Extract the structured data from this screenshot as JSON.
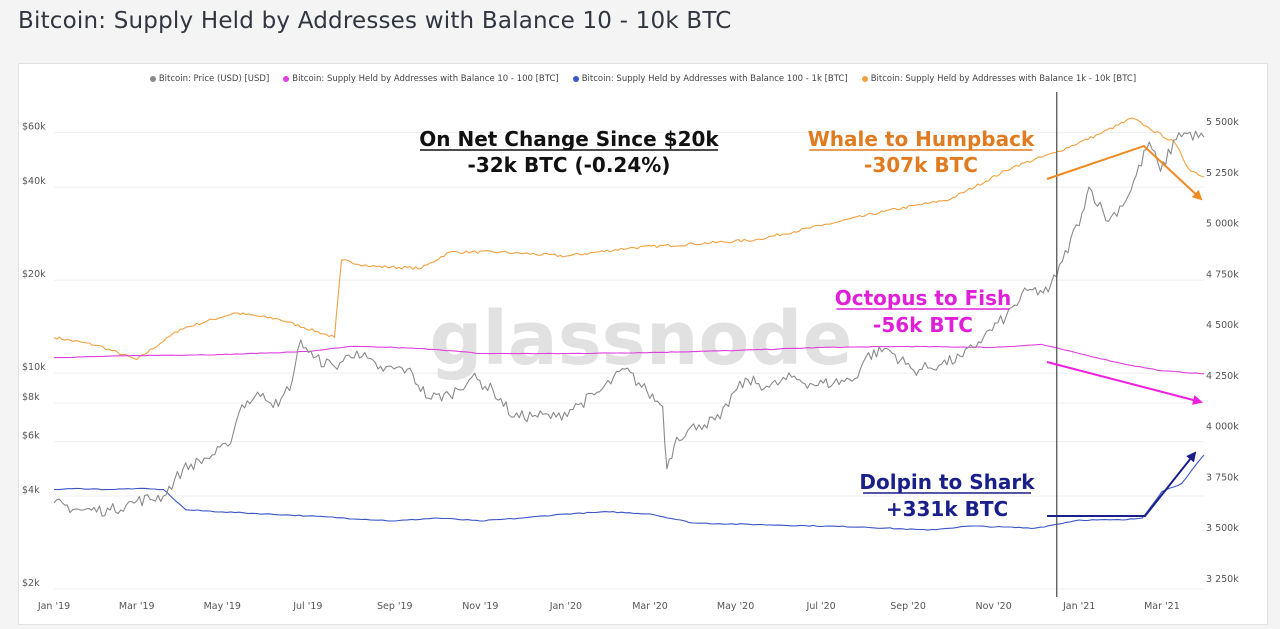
{
  "page": {
    "title": "Bitcoin: Supply Held by Addresses with Balance 10 - 10k BTC"
  },
  "chart_data": {
    "type": "line",
    "title": "Bitcoin: Supply Held by Addresses with Balance 10 - 10k BTC",
    "watermark": "glassnode",
    "legend_position": "top",
    "x_ticks": [
      "Jan '19",
      "Mar '19",
      "May '19",
      "Jul '19",
      "Sep '19",
      "Nov '19",
      "Jan '20",
      "Mar '20",
      "May '20",
      "Jul '20",
      "Sep '20",
      "Nov '20",
      "Jan '21",
      "Mar '21"
    ],
    "x_tick_dates": [
      "2019-01-01",
      "2019-03-01",
      "2019-05-01",
      "2019-07-01",
      "2019-09-01",
      "2019-11-01",
      "2020-01-01",
      "2020-03-01",
      "2020-05-01",
      "2020-07-01",
      "2020-09-01",
      "2020-11-01",
      "2021-01-01",
      "2021-03-01"
    ],
    "x_range": [
      "2019-01-01",
      "2021-03-31"
    ],
    "y_left": {
      "scale": "log",
      "unit": "USD",
      "range": [
        2000,
        70000
      ],
      "ticks": [
        2000,
        4000,
        6000,
        8000,
        10000,
        20000,
        40000,
        60000
      ],
      "tick_labels": [
        "$2k",
        "$4k",
        "$6k",
        "$8k",
        "$10k",
        "$20k",
        "$40k",
        "$60k"
      ]
    },
    "y_right": {
      "scale": "linear",
      "unit": "BTC",
      "range": [
        3200000,
        5550000
      ],
      "ticks": [
        3250000,
        3500000,
        3750000,
        4000000,
        4250000,
        4500000,
        4750000,
        5000000,
        5250000,
        5500000
      ],
      "tick_labels": [
        "3 250k",
        "3 500k",
        "3 750k",
        "4 000k",
        "4 250k",
        "4 500k",
        "4 750k",
        "5 000k",
        "5 250k",
        "5 500k"
      ]
    },
    "grid": true,
    "marker_date": "2020-12-16",
    "series": [
      {
        "name": "Bitcoin: Price (USD) [USD]",
        "color": "#8a8a8a",
        "axis": "left",
        "points": [
          [
            "2019-01-01",
            3800
          ],
          [
            "2019-01-20",
            3600
          ],
          [
            "2019-02-10",
            3600
          ],
          [
            "2019-03-01",
            3850
          ],
          [
            "2019-03-20",
            4000
          ],
          [
            "2019-04-03",
            4900
          ],
          [
            "2019-04-20",
            5300
          ],
          [
            "2019-05-05",
            5800
          ],
          [
            "2019-05-15",
            7900
          ],
          [
            "2019-05-30",
            8600
          ],
          [
            "2019-06-10",
            7800
          ],
          [
            "2019-06-20",
            9500
          ],
          [
            "2019-06-26",
            12800
          ],
          [
            "2019-07-05",
            11200
          ],
          [
            "2019-07-20",
            10500
          ],
          [
            "2019-08-05",
            11800
          ],
          [
            "2019-08-20",
            10300
          ],
          [
            "2019-09-10",
            10300
          ],
          [
            "2019-09-25",
            8300
          ],
          [
            "2019-10-10",
            8500
          ],
          [
            "2019-10-26",
            9700
          ],
          [
            "2019-11-10",
            8800
          ],
          [
            "2019-11-25",
            7200
          ],
          [
            "2019-12-10",
            7300
          ],
          [
            "2019-12-25",
            7200
          ],
          [
            "2020-01-10",
            7900
          ],
          [
            "2020-01-25",
            8700
          ],
          [
            "2020-02-12",
            10300
          ],
          [
            "2020-02-28",
            8700
          ],
          [
            "2020-03-10",
            7800
          ],
          [
            "2020-03-13",
            4900
          ],
          [
            "2020-03-20",
            6200
          ],
          [
            "2020-04-05",
            6800
          ],
          [
            "2020-04-20",
            7100
          ],
          [
            "2020-04-30",
            8700
          ],
          [
            "2020-05-10",
            9500
          ],
          [
            "2020-05-25",
            9000
          ],
          [
            "2020-06-10",
            9700
          ],
          [
            "2020-06-25",
            9200
          ],
          [
            "2020-07-10",
            9300
          ],
          [
            "2020-07-25",
            9600
          ],
          [
            "2020-08-02",
            11300
          ],
          [
            "2020-08-17",
            12000
          ],
          [
            "2020-09-05",
            10200
          ],
          [
            "2020-09-25",
            10700
          ],
          [
            "2020-10-10",
            11300
          ],
          [
            "2020-10-25",
            13100
          ],
          [
            "2020-11-10",
            15300
          ],
          [
            "2020-11-25",
            18500
          ],
          [
            "2020-12-10",
            18300
          ],
          [
            "2020-12-20",
            23000
          ],
          [
            "2021-01-03",
            33000
          ],
          [
            "2021-01-08",
            40000
          ],
          [
            "2021-01-22",
            31000
          ],
          [
            "2021-02-05",
            37500
          ],
          [
            "2021-02-20",
            56000
          ],
          [
            "2021-02-28",
            45000
          ],
          [
            "2021-03-13",
            60000
          ],
          [
            "2021-03-31",
            58000
          ]
        ]
      },
      {
        "name": "Bitcoin: Supply Held by Addresses with Balance 10 - 100 [BTC]",
        "color": "#e040e0",
        "axis": "right",
        "points": [
          [
            "2019-01-01",
            4340000
          ],
          [
            "2019-03-01",
            4350000
          ],
          [
            "2019-05-01",
            4355000
          ],
          [
            "2019-07-01",
            4370000
          ],
          [
            "2019-08-01",
            4395000
          ],
          [
            "2019-09-01",
            4390000
          ],
          [
            "2019-10-01",
            4380000
          ],
          [
            "2019-11-01",
            4360000
          ],
          [
            "2020-01-01",
            4360000
          ],
          [
            "2020-03-01",
            4365000
          ],
          [
            "2020-05-01",
            4375000
          ],
          [
            "2020-07-01",
            4390000
          ],
          [
            "2020-09-01",
            4395000
          ],
          [
            "2020-11-01",
            4390000
          ],
          [
            "2020-12-05",
            4405000
          ],
          [
            "2021-01-01",
            4360000
          ],
          [
            "2021-02-01",
            4310000
          ],
          [
            "2021-03-01",
            4275000
          ],
          [
            "2021-03-31",
            4260000
          ]
        ]
      },
      {
        "name": "Bitcoin: Supply Held by Addresses with Balance 100 - 1k [BTC]",
        "color": "#3a55c8",
        "axis": "right",
        "points": [
          [
            "2019-01-01",
            3690000
          ],
          [
            "2019-01-20",
            3695000
          ],
          [
            "2019-02-10",
            3690000
          ],
          [
            "2019-03-01",
            3695000
          ],
          [
            "2019-03-20",
            3690000
          ],
          [
            "2019-04-05",
            3590000
          ],
          [
            "2019-05-01",
            3580000
          ],
          [
            "2019-07-01",
            3560000
          ],
          [
            "2019-09-01",
            3535000
          ],
          [
            "2019-10-01",
            3550000
          ],
          [
            "2019-11-01",
            3535000
          ],
          [
            "2019-12-01",
            3550000
          ],
          [
            "2020-01-01",
            3570000
          ],
          [
            "2020-02-01",
            3580000
          ],
          [
            "2020-03-01",
            3570000
          ],
          [
            "2020-04-01",
            3525000
          ],
          [
            "2020-06-01",
            3515000
          ],
          [
            "2020-08-01",
            3505000
          ],
          [
            "2020-09-15",
            3490000
          ],
          [
            "2020-10-15",
            3510000
          ],
          [
            "2020-12-01",
            3500000
          ],
          [
            "2021-01-01",
            3540000
          ],
          [
            "2021-02-01",
            3540000
          ],
          [
            "2021-02-15",
            3550000
          ],
          [
            "2021-03-01",
            3680000
          ],
          [
            "2021-03-15",
            3720000
          ],
          [
            "2021-03-31",
            3860000
          ]
        ]
      },
      {
        "name": "Bitcoin: Supply Held by Addresses with Balance 1k - 10k [BTC]",
        "color": "#f2a040",
        "axis": "right",
        "points": [
          [
            "2019-01-01",
            4440000
          ],
          [
            "2019-02-01",
            4400000
          ],
          [
            "2019-03-01",
            4330000
          ],
          [
            "2019-04-01",
            4480000
          ],
          [
            "2019-05-10",
            4560000
          ],
          [
            "2019-06-10",
            4530000
          ],
          [
            "2019-07-20",
            4440000
          ],
          [
            "2019-07-25",
            4820000
          ],
          [
            "2019-08-15",
            4790000
          ],
          [
            "2019-09-20",
            4780000
          ],
          [
            "2019-10-10",
            4860000
          ],
          [
            "2019-11-15",
            4860000
          ],
          [
            "2020-01-01",
            4840000
          ],
          [
            "2020-02-15",
            4880000
          ],
          [
            "2020-04-01",
            4900000
          ],
          [
            "2020-05-15",
            4920000
          ],
          [
            "2020-07-01",
            4990000
          ],
          [
            "2020-08-15",
            5060000
          ],
          [
            "2020-09-15",
            5100000
          ],
          [
            "2020-10-01",
            5120000
          ],
          [
            "2020-11-15",
            5280000
          ],
          [
            "2020-12-15",
            5350000
          ],
          [
            "2021-01-15",
            5440000
          ],
          [
            "2021-02-08",
            5520000
          ],
          [
            "2021-02-20",
            5470000
          ],
          [
            "2021-03-10",
            5400000
          ],
          [
            "2021-03-20",
            5270000
          ],
          [
            "2021-03-31",
            5230000
          ]
        ]
      }
    ],
    "annotations": [
      {
        "lines": [
          "On Net Change Since $20k",
          "-32k BTC (-0.24%)"
        ],
        "color": "#111111"
      },
      {
        "lines": [
          "Whale to Humpback",
          "-307k BTC"
        ],
        "color": "#e07b20"
      },
      {
        "lines": [
          "Octopus to Fish",
          "-56k BTC"
        ],
        "color": "#e020d8"
      },
      {
        "lines": [
          "Dolpin to Shark",
          "+331k BTC"
        ],
        "color": "#1a1f8a"
      }
    ]
  }
}
